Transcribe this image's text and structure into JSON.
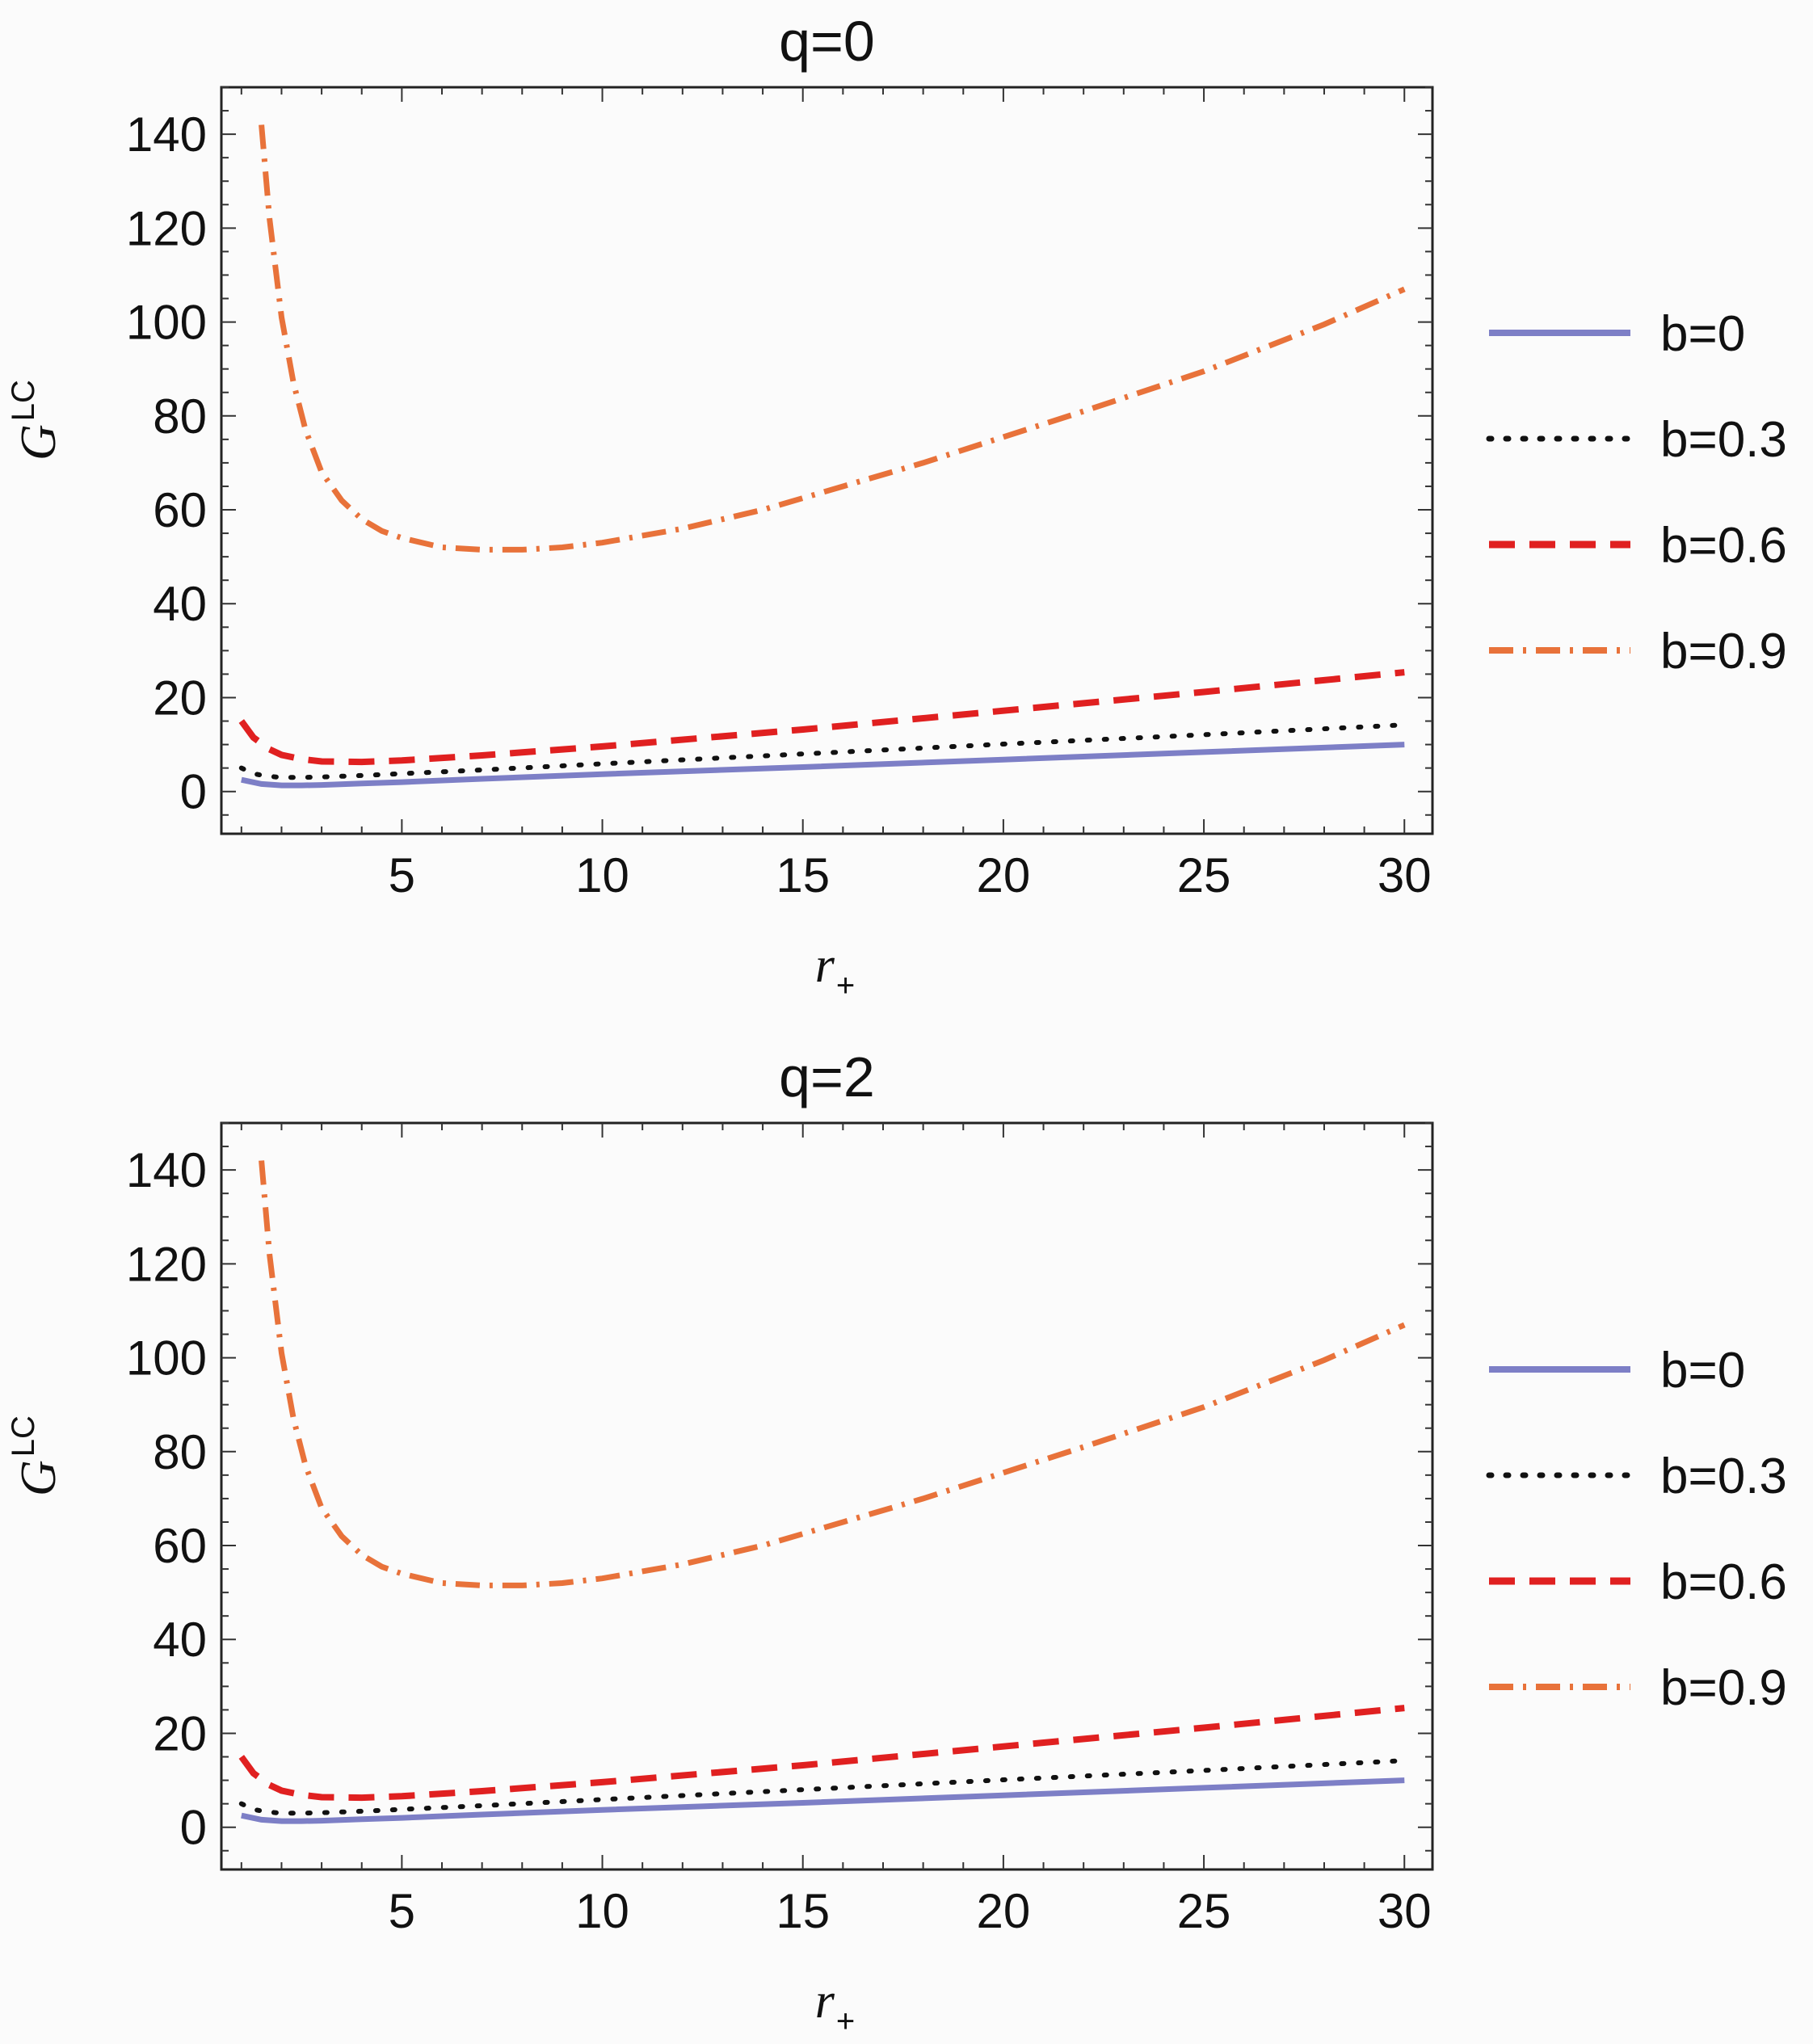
{
  "chart_data": [
    {
      "type": "line",
      "title": "q=0",
      "xlabel": "r",
      "xlabel_sub": "+",
      "ylabel": "G",
      "ylabel_sup": "LC",
      "xlim": [
        0.5,
        30.7
      ],
      "ylim": [
        -9,
        150
      ],
      "xticks": [
        5,
        10,
        15,
        20,
        25,
        30
      ],
      "yticks": [
        0,
        20,
        40,
        60,
        80,
        100,
        120,
        140
      ],
      "legend_position": "right",
      "series": [
        {
          "name": "b=0",
          "style": "solid",
          "color": "#7d7fc6",
          "x": [
            1,
            1.5,
            2,
            2.5,
            3,
            4,
            5,
            7,
            10,
            15,
            20,
            25,
            30
          ],
          "y": [
            2.5,
            1.6,
            1.3,
            1.3,
            1.4,
            1.7,
            2.0,
            2.7,
            3.7,
            5.2,
            6.8,
            8.4,
            10.0
          ]
        },
        {
          "name": "b=0.3",
          "style": "dotted",
          "color": "#111111",
          "x": [
            1,
            1.3,
            1.6,
            2,
            2.5,
            3,
            4,
            5,
            7,
            10,
            15,
            20,
            25,
            30
          ],
          "y": [
            5.0,
            3.8,
            3.3,
            3.0,
            3.0,
            3.1,
            3.4,
            3.8,
            4.6,
            5.9,
            8.0,
            10.1,
            12.1,
            14.2
          ]
        },
        {
          "name": "b=0.6",
          "style": "dashed",
          "color": "#e02020",
          "x": [
            1,
            1.3,
            1.7,
            2,
            2.5,
            3,
            4,
            5,
            7,
            10,
            15,
            20,
            25,
            30
          ],
          "y": [
            15.0,
            11.5,
            9.0,
            7.8,
            6.9,
            6.4,
            6.3,
            6.6,
            7.7,
            9.6,
            13.2,
            17.2,
            21.2,
            25.4
          ]
        },
        {
          "name": "b=0.9",
          "style": "dashdot",
          "color": "#e8723a",
          "x": [
            1.5,
            1.7,
            2,
            2.3,
            2.6,
            3,
            3.5,
            4,
            4.5,
            5,
            6,
            7,
            8,
            9,
            10,
            12,
            14,
            16,
            18,
            20,
            22,
            25,
            28,
            30
          ],
          "y": [
            142,
            122,
            101,
            87,
            77,
            68,
            62,
            58,
            55.5,
            54,
            52,
            51.5,
            51.5,
            52,
            53,
            56,
            60,
            65,
            70,
            75.5,
            81,
            89.5,
            99.5,
            107
          ]
        }
      ]
    },
    {
      "type": "line",
      "title": "q=2",
      "xlabel": "r",
      "xlabel_sub": "+",
      "ylabel": "G",
      "ylabel_sup": "LC",
      "xlim": [
        0.5,
        30.7
      ],
      "ylim": [
        -9,
        150
      ],
      "xticks": [
        5,
        10,
        15,
        20,
        25,
        30
      ],
      "yticks": [
        0,
        20,
        40,
        60,
        80,
        100,
        120,
        140
      ],
      "legend_position": "right",
      "series": [
        {
          "name": "b=0",
          "style": "solid",
          "color": "#7d7fc6",
          "x": [
            1,
            1.5,
            2,
            2.5,
            3,
            4,
            5,
            7,
            10,
            15,
            20,
            25,
            30
          ],
          "y": [
            2.5,
            1.6,
            1.3,
            1.3,
            1.4,
            1.7,
            2.0,
            2.7,
            3.7,
            5.2,
            6.8,
            8.4,
            10.0
          ]
        },
        {
          "name": "b=0.3",
          "style": "dotted",
          "color": "#111111",
          "x": [
            1,
            1.3,
            1.6,
            2,
            2.5,
            3,
            4,
            5,
            7,
            10,
            15,
            20,
            25,
            30
          ],
          "y": [
            5.0,
            3.8,
            3.3,
            3.0,
            3.0,
            3.1,
            3.4,
            3.8,
            4.6,
            5.9,
            8.0,
            10.1,
            12.1,
            14.2
          ]
        },
        {
          "name": "b=0.6",
          "style": "dashed",
          "color": "#e02020",
          "x": [
            1,
            1.3,
            1.7,
            2,
            2.5,
            3,
            4,
            5,
            7,
            10,
            15,
            20,
            25,
            30
          ],
          "y": [
            15.0,
            11.5,
            9.0,
            7.8,
            6.9,
            6.4,
            6.3,
            6.6,
            7.7,
            9.6,
            13.2,
            17.2,
            21.2,
            25.4
          ]
        },
        {
          "name": "b=0.9",
          "style": "dashdot",
          "color": "#e8723a",
          "x": [
            1.5,
            1.7,
            2,
            2.3,
            2.6,
            3,
            3.5,
            4,
            4.5,
            5,
            6,
            7,
            8,
            9,
            10,
            12,
            14,
            16,
            18,
            20,
            22,
            25,
            28,
            30
          ],
          "y": [
            142,
            122,
            101,
            87,
            77,
            68,
            62,
            58,
            55.5,
            54,
            52,
            51.5,
            51.5,
            52,
            53,
            56,
            60,
            65,
            70,
            75.5,
            81,
            89.5,
            99.5,
            107
          ]
        }
      ]
    }
  ]
}
